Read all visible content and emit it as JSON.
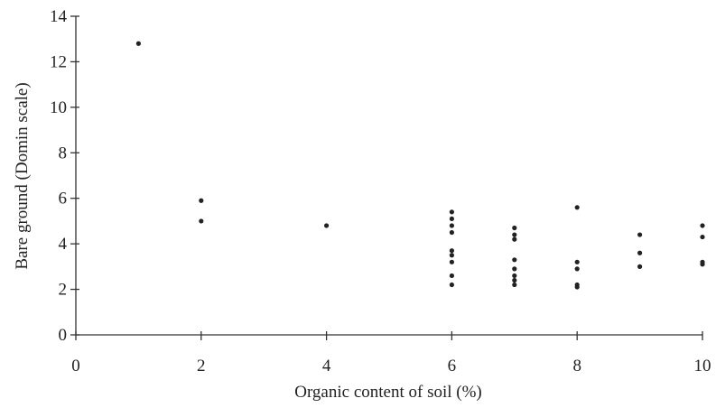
{
  "chart_data": {
    "type": "scatter",
    "x_label": "Organic content of soil (%)",
    "y_label": "Bare ground (Domin scale)",
    "x": [
      1,
      2,
      2,
      4,
      6,
      6,
      6,
      6,
      6,
      6,
      6,
      6,
      6,
      7,
      7,
      7,
      7,
      7,
      7,
      7,
      7,
      8,
      8,
      8,
      8,
      8,
      9,
      9,
      9,
      10,
      10,
      10,
      10
    ],
    "values": [
      12.8,
      5.9,
      5.0,
      4.8,
      5.4,
      5.1,
      4.8,
      4.5,
      3.7,
      3.5,
      3.2,
      2.6,
      2.2,
      4.7,
      4.4,
      4.2,
      3.3,
      2.9,
      2.6,
      2.4,
      2.2,
      5.6,
      3.2,
      2.9,
      2.2,
      2.1,
      4.4,
      3.6,
      3.0,
      4.8,
      4.3,
      3.2,
      3.1
    ],
    "color": "#222222",
    "xlim": [
      0,
      10
    ],
    "xticks": [
      0,
      2,
      4,
      6,
      8,
      10
    ],
    "ylim": [
      0,
      14
    ],
    "yticks": [
      0,
      2,
      4,
      6,
      8,
      10,
      12,
      14
    ]
  }
}
